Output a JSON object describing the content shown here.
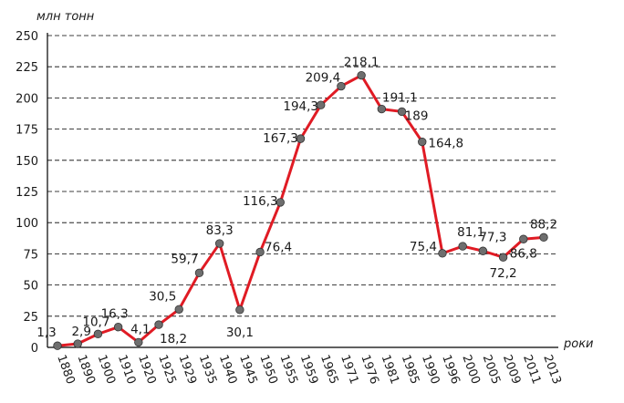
{
  "chart_data": {
    "type": "line",
    "ylabel": "млн тонн",
    "xlabel": "роки",
    "ylim": [
      0,
      250
    ],
    "yticks": [
      "0",
      "25",
      "50",
      "75",
      "100",
      "125",
      "150",
      "175",
      "200",
      "225",
      "250"
    ],
    "grid": true,
    "categories": [
      "1880",
      "1890",
      "1900",
      "1910",
      "1920",
      "1925",
      "1929",
      "1935",
      "1940",
      "1945",
      "1950",
      "1955",
      "1959",
      "1965",
      "1971",
      "1976",
      "1981",
      "1985",
      "1990",
      "1996",
      "2000",
      "2005",
      "2009",
      "2011",
      "2013"
    ],
    "values": [
      1.3,
      2.9,
      10.7,
      16.3,
      4.1,
      18.2,
      30.5,
      59.7,
      83.3,
      30.1,
      76.4,
      116.3,
      167.3,
      194.3,
      209.4,
      218.1,
      191.1,
      189,
      164.8,
      75.4,
      81.1,
      77.3,
      72.2,
      86.8,
      88.2
    ],
    "value_labels": [
      "1,3",
      "2,9",
      "10,7",
      "16,3",
      "4,1",
      "18,2",
      "30,5",
      "59,7",
      "83,3",
      "30,1",
      "76,4",
      "116,3",
      "167,3",
      "194,3",
      "209,4",
      "218,1",
      "191,1",
      "189",
      "164,8",
      "75,4",
      "81,1",
      "77,3",
      "72,2",
      "86,8",
      "88,2"
    ],
    "line_color": "#e01b24",
    "marker_color": "#6e6e6e"
  }
}
